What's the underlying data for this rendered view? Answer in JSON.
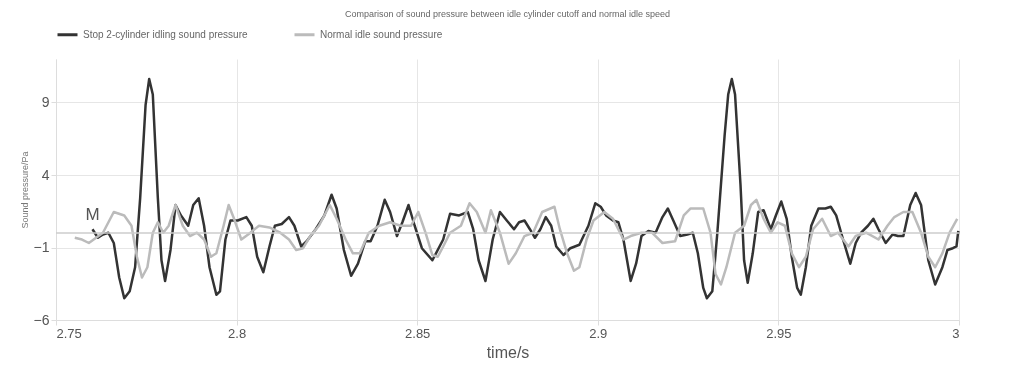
{
  "chart_data": {
    "type": "line",
    "title": "Comparison of sound pressure between idle cylinder cutoff and normal idle speed",
    "xlabel": "time/s",
    "ylabel": "Sound pressure/Pa",
    "xlim": [
      2.75,
      3.0
    ],
    "xticks": [
      2.75,
      2.8,
      2.85,
      2.9,
      2.95,
      3
    ],
    "ylim": [
      -6,
      12
    ],
    "yticks": [
      -6,
      -1,
      4,
      9
    ],
    "grid": true,
    "legend": "top",
    "line_style": "solid",
    "ref_lines": [
      {
        "axis": "y",
        "value": 0,
        "color": "#cccccc"
      }
    ],
    "annotations": [
      {
        "text": "M",
        "x": 2.7601,
        "y": 0.26
      }
    ],
    "series": [
      {
        "name": "Stop 2-cylinder idling sound pressure",
        "color": "#333333",
        "x": [
          2.7601,
          2.7616,
          2.763,
          2.7645,
          2.766,
          2.7675,
          2.7689,
          2.7704,
          2.7719,
          2.7733,
          2.7748,
          2.7758,
          2.7768,
          2.7782,
          2.7792,
          2.7802,
          2.7817,
          2.7831,
          2.7846,
          2.7866,
          2.788,
          2.7895,
          2.791,
          2.7925,
          2.7944,
          2.7954,
          2.7969,
          2.7983,
          2.8003,
          2.8027,
          2.8042,
          2.8057,
          2.8074,
          2.8091,
          2.8106,
          2.8125,
          2.8145,
          2.816,
          2.8179,
          2.8194,
          2.8219,
          2.8243,
          2.8263,
          2.8277,
          2.8297,
          2.8317,
          2.8336,
          2.8356,
          2.8371,
          2.839,
          2.841,
          2.8425,
          2.8444,
          2.8459,
          2.8476,
          2.8493,
          2.8513,
          2.8542,
          2.8572,
          2.8591,
          2.8616,
          2.864,
          2.8655,
          2.867,
          2.8689,
          2.8709,
          2.8729,
          2.8748,
          2.8768,
          2.8782,
          2.8797,
          2.8812,
          2.8826,
          2.8841,
          2.8856,
          2.8871,
          2.8885,
          2.8905,
          2.8924,
          2.8949,
          2.8974,
          2.8993,
          2.9008,
          2.9023,
          2.9042,
          2.9057,
          2.9071,
          2.9091,
          2.9106,
          2.9121,
          2.914,
          2.916,
          2.9179,
          2.9194,
          2.9209,
          2.9228,
          2.9248,
          2.9263,
          2.9277,
          2.9292,
          2.9302,
          2.9317,
          2.9331,
          2.9351,
          2.9361,
          2.9371,
          2.938,
          2.9395,
          2.9405,
          2.9415,
          2.9429,
          2.9444,
          2.9459,
          2.9479,
          2.9493,
          2.9508,
          2.9523,
          2.9537,
          2.9552,
          2.9562,
          2.9576,
          2.9591,
          2.9611,
          2.963,
          2.9645,
          2.966,
          2.9679,
          2.9699,
          2.9714,
          2.9729,
          2.9748,
          2.9763,
          2.9777,
          2.9797,
          2.9816,
          2.9831,
          2.9846,
          2.9865,
          2.988,
          2.9895,
          2.9915,
          2.9934,
          2.9954,
          2.9968,
          2.9983,
          2.9993,
          2.9998
        ],
        "values": [
          0.26,
          -0.33,
          -0.1,
          0.02,
          -0.69,
          -3.07,
          -4.5,
          -4.02,
          -2.36,
          2.4,
          8.83,
          10.62,
          9.55,
          2.4,
          -1.88,
          -3.31,
          -1.17,
          1.93,
          1.21,
          0.5,
          1.93,
          2.4,
          0.5,
          -2.36,
          -4.26,
          -4.02,
          -0.45,
          0.86,
          0.86,
          1.1,
          0.5,
          -1.64,
          -2.71,
          -0.93,
          0.5,
          0.62,
          1.1,
          0.5,
          -0.93,
          -0.57,
          0.26,
          1.21,
          2.64,
          1.69,
          -1.17,
          -2.95,
          -2.12,
          -0.57,
          -0.57,
          0.5,
          2.29,
          1.45,
          -0.21,
          0.74,
          1.93,
          0.5,
          -1.05,
          -1.88,
          -0.45,
          1.33,
          1.21,
          1.45,
          0.26,
          -1.88,
          -3.31,
          -0.45,
          1.45,
          0.86,
          0.26,
          0.74,
          0.86,
          0.26,
          -0.33,
          0.26,
          1.1,
          0.5,
          -0.93,
          -1.52,
          -1.05,
          -0.81,
          0.5,
          2.05,
          1.81,
          1.21,
          0.86,
          0.74,
          -0.45,
          -3.31,
          -2.12,
          -0.21,
          0.14,
          0.02,
          1.1,
          1.69,
          0.86,
          -0.21,
          -0.1,
          0.02,
          -1.4,
          -3.79,
          -4.5,
          -4.02,
          0.02,
          6.69,
          9.55,
          10.62,
          9.55,
          3.36,
          -1.88,
          -3.43,
          -1.4,
          1.45,
          1.57,
          0.26,
          1.21,
          2.17,
          0.98,
          -1.64,
          -3.79,
          -4.26,
          -2.36,
          0.5,
          1.69,
          1.69,
          1.81,
          1.21,
          -0.45,
          -2.12,
          -0.69,
          0.02,
          0.5,
          0.98,
          0.26,
          -0.69,
          -0.1,
          -0.21,
          -0.21,
          1.93,
          2.76,
          1.93,
          -1.88,
          -3.55,
          -2.36,
          -1.17,
          -1.05,
          -0.93,
          0.14
        ]
      },
      {
        "name": "Normal idle sound pressure",
        "color": "#bbbbbb",
        "x": [
          2.7552,
          2.7572,
          2.7591,
          2.7611,
          2.763,
          2.766,
          2.7689,
          2.7709,
          2.7724,
          2.7738,
          2.7753,
          2.7768,
          2.7782,
          2.7797,
          2.7812,
          2.7831,
          2.7851,
          2.7871,
          2.789,
          2.791,
          2.7929,
          2.7944,
          2.7964,
          2.7978,
          2.7993,
          2.8013,
          2.8032,
          2.8062,
          2.8091,
          2.8121,
          2.8145,
          2.8165,
          2.8184,
          2.8204,
          2.8228,
          2.8258,
          2.8277,
          2.8302,
          2.8322,
          2.8341,
          2.8366,
          2.8395,
          2.8425,
          2.8454,
          2.8483,
          2.8503,
          2.8523,
          2.8542,
          2.8557,
          2.8572,
          2.8591,
          2.8621,
          2.8645,
          2.8665,
          2.8689,
          2.8704,
          2.8729,
          2.8753,
          2.8773,
          2.8797,
          2.8821,
          2.8846,
          2.888,
          2.8895,
          2.8915,
          2.8934,
          2.8949,
          2.8969,
          2.8988,
          2.9018,
          2.9042,
          2.9071,
          2.9091,
          2.9121,
          2.915,
          2.9179,
          2.9214,
          2.9238,
          2.9257,
          2.9292,
          2.9312,
          2.9326,
          2.9341,
          2.9356,
          2.938,
          2.9405,
          2.9424,
          2.9439,
          2.9459,
          2.9479,
          2.9498,
          2.9518,
          2.9537,
          2.9557,
          2.9576,
          2.9596,
          2.9621,
          2.9645,
          2.9665,
          2.9694,
          2.9714,
          2.9743,
          2.9777,
          2.9802,
          2.9821,
          2.9846,
          2.9871,
          2.9895,
          2.9915,
          2.9934,
          2.9954,
          2.9974,
          2.9995
        ],
        "values": [
          -0.33,
          -0.45,
          -0.69,
          -0.33,
          0.02,
          1.45,
          1.21,
          0.5,
          -1.64,
          -3.07,
          -2.36,
          0.02,
          0.74,
          0.02,
          0.5,
          1.93,
          0.5,
          -0.21,
          0.02,
          -0.45,
          -1.64,
          -1.4,
          0.5,
          1.93,
          0.98,
          -0.45,
          -0.1,
          0.5,
          0.38,
          0.02,
          -0.45,
          -1.17,
          -1.05,
          -0.21,
          0.5,
          1.93,
          0.98,
          -0.45,
          -1.4,
          -1.4,
          0.02,
          0.5,
          0.74,
          0.5,
          0.5,
          1.45,
          0.02,
          -1.52,
          -1.64,
          -0.93,
          0.02,
          0.5,
          2.05,
          1.45,
          0.02,
          1.57,
          0.02,
          -2.12,
          -1.4,
          -0.21,
          0.02,
          1.45,
          1.81,
          0.26,
          -1.4,
          -2.6,
          -2.36,
          -0.45,
          0.86,
          1.45,
          0.98,
          -0.45,
          -0.21,
          0.02,
          0.02,
          -0.69,
          -0.57,
          1.21,
          1.69,
          1.69,
          0.02,
          -2.83,
          -3.55,
          -2.36,
          0.02,
          0.5,
          1.93,
          2.29,
          0.98,
          0.02,
          0.74,
          0.5,
          -1.4,
          -2.36,
          -1.64,
          0.26,
          0.98,
          -0.21,
          0.02,
          -0.93,
          -0.21,
          0.02,
          -0.45,
          0.5,
          1.1,
          1.45,
          1.45,
          0.02,
          -1.64,
          -2.36,
          -1.4,
          0.02,
          0.98
        ]
      }
    ]
  }
}
